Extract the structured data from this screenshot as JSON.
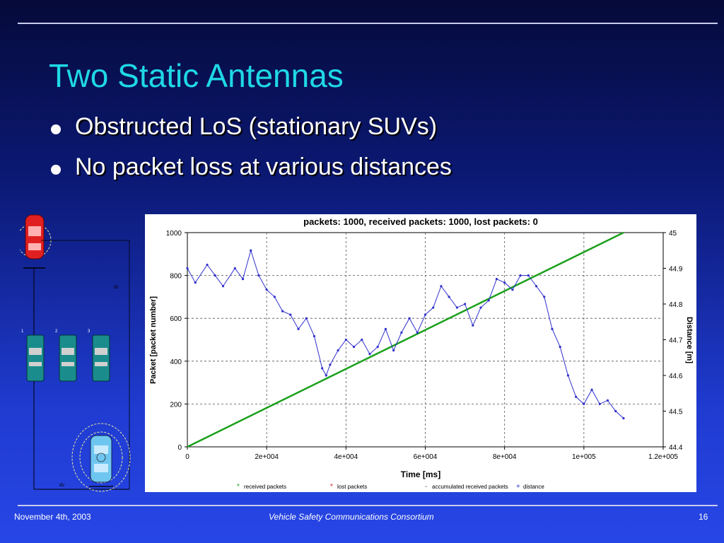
{
  "slide": {
    "title": "Two Static Antennas",
    "bullets": [
      "Obstructed LoS (stationary SUVs)",
      "No packet loss at various distances"
    ]
  },
  "footer": {
    "date": "November 4th, 2003",
    "org": "Vehicle Safety Communications Consortium",
    "page": "16"
  },
  "diagram": {
    "car_numbers": [
      "1",
      "2",
      "3"
    ],
    "label_d1": "d₁",
    "label_d2": "d₂",
    "colors": {
      "red_car": "#e02020",
      "suv": "#1a8c8c",
      "blue_car": "#6ec6f0",
      "line": "#000000",
      "halo": "#e8e8a0"
    }
  },
  "chart_data": {
    "type": "line",
    "title": "packets: 1000, received packets: 1000, lost packets: 0",
    "xlabel": "Time [ms]",
    "ylabel": "Packet [packet number]",
    "y2label": "Distance [m]",
    "xlim": [
      0,
      120000
    ],
    "ylim": [
      0,
      1000
    ],
    "y2lim": [
      44.4,
      45
    ],
    "xticks": [
      "0",
      "2e+004",
      "4e+004",
      "6e+004",
      "8e+004",
      "1e+005",
      "1.2e+005"
    ],
    "yticks": [
      "0",
      "200",
      "400",
      "600",
      "800",
      "1000"
    ],
    "y2ticks": [
      "44.4",
      "44.5",
      "44.6",
      "44.7",
      "44.8",
      "44.9",
      "45"
    ],
    "grid": true,
    "legend_position": "bottom",
    "series": [
      {
        "name": "received packets",
        "color": "#1aa01a",
        "axis": "left",
        "x": [
          0,
          110000
        ],
        "y": [
          0,
          1000
        ]
      },
      {
        "name": "lost packets",
        "color": "#d02020",
        "axis": "left",
        "x": [],
        "y": []
      },
      {
        "name": "accumulated received packets",
        "color": "#606060",
        "axis": "left",
        "x": [],
        "y": []
      },
      {
        "name": "distance",
        "color": "#3030cc",
        "axis": "right",
        "x": [
          0,
          2000,
          5000,
          7000,
          9000,
          12000,
          14000,
          16000,
          18000,
          20000,
          22000,
          24000,
          26000,
          28000,
          30000,
          32000,
          34000,
          35000,
          36000,
          38000,
          40000,
          42000,
          44000,
          46000,
          48000,
          50000,
          52000,
          54000,
          56000,
          58000,
          60000,
          62000,
          64000,
          66000,
          68000,
          70000,
          72000,
          74000,
          76000,
          78000,
          80000,
          82000,
          84000,
          86000,
          88000,
          90000,
          92000,
          94000,
          96000,
          98000,
          100000,
          102000,
          104000,
          106000,
          108000,
          110000
        ],
        "y": [
          44.9,
          44.86,
          44.91,
          44.88,
          44.85,
          44.9,
          44.87,
          44.95,
          44.88,
          44.84,
          44.82,
          44.78,
          44.77,
          44.73,
          44.76,
          44.71,
          44.62,
          44.6,
          44.63,
          44.67,
          44.7,
          44.68,
          44.7,
          44.66,
          44.68,
          44.73,
          44.67,
          44.72,
          44.76,
          44.72,
          44.77,
          44.79,
          44.85,
          44.82,
          44.79,
          44.8,
          44.74,
          44.79,
          44.81,
          44.87,
          44.86,
          44.84,
          44.88,
          44.88,
          44.85,
          44.82,
          44.73,
          44.68,
          44.6,
          44.54,
          44.52,
          44.56,
          44.52,
          44.53,
          44.5,
          44.48
        ]
      }
    ]
  }
}
